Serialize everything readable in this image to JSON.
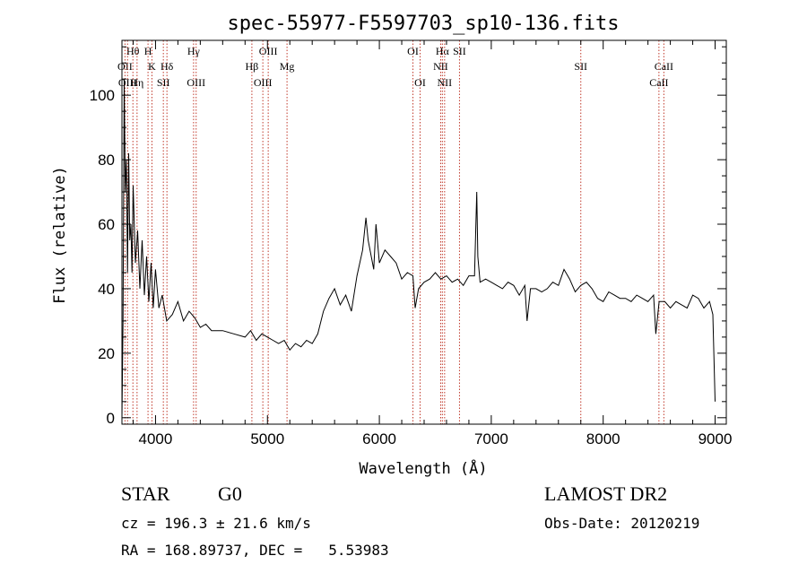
{
  "chart_data": {
    "type": "line",
    "title": "spec-55977-F5597703_sp10-136.fits",
    "xlabel": "Wavelength (Å)",
    "ylabel": "Flux (relative)",
    "xlim": [
      3700,
      9100
    ],
    "ylim": [
      -2,
      117
    ],
    "x_ticks": [
      4000,
      5000,
      6000,
      7000,
      8000,
      9000
    ],
    "y_ticks": [
      0,
      20,
      40,
      60,
      80,
      100
    ],
    "grid": false,
    "series": [
      {
        "x": [
          3700,
          3710,
          3720,
          3730,
          3740,
          3750,
          3760,
          3770,
          3780,
          3790,
          3800,
          3820,
          3840,
          3860,
          3880,
          3900,
          3920,
          3940,
          3960,
          3980,
          4000,
          4030,
          4060,
          4100,
          4150,
          4200,
          4250,
          4300,
          4350,
          4400,
          4450,
          4500,
          4600,
          4700,
          4800,
          4850,
          4900,
          4950,
          5000,
          5050,
          5100,
          5150,
          5200,
          5250,
          5300,
          5350,
          5400,
          5450,
          5500,
          5550,
          5600,
          5650,
          5700,
          5750,
          5800,
          5850,
          5880,
          5900,
          5950,
          5970,
          6000,
          6050,
          6100,
          6150,
          6200,
          6250,
          6300,
          6320,
          6350,
          6400,
          6450,
          6500,
          6550,
          6600,
          6650,
          6700,
          6750,
          6800,
          6850,
          6870,
          6880,
          6900,
          6950,
          7000,
          7050,
          7100,
          7150,
          7200,
          7250,
          7300,
          7320,
          7350,
          7400,
          7450,
          7500,
          7550,
          7600,
          7650,
          7700,
          7750,
          7800,
          7850,
          7900,
          7950,
          8000,
          8050,
          8100,
          8150,
          8200,
          8250,
          8300,
          8350,
          8400,
          8450,
          8470,
          8500,
          8550,
          8600,
          8650,
          8700,
          8750,
          8800,
          8850,
          8900,
          8950,
          8980,
          9000
        ],
        "values": [
          0,
          30,
          105,
          70,
          80,
          45,
          82,
          55,
          60,
          45,
          72,
          48,
          58,
          40,
          55,
          38,
          50,
          36,
          48,
          34,
          46,
          34,
          38,
          30,
          32,
          36,
          30,
          33,
          31,
          28,
          29,
          27,
          27,
          26,
          25,
          27,
          24,
          26,
          25,
          24,
          23,
          24,
          21,
          23,
          22,
          24,
          23,
          26,
          33,
          37,
          40,
          35,
          38,
          33,
          44,
          52,
          62,
          55,
          46,
          60,
          48,
          52,
          50,
          48,
          43,
          45,
          44,
          34,
          40,
          42,
          43,
          45,
          43,
          44,
          42,
          43,
          41,
          44,
          44,
          70,
          50,
          42,
          43,
          42,
          41,
          40,
          42,
          41,
          38,
          41,
          30,
          40,
          40,
          39,
          40,
          42,
          41,
          46,
          43,
          39,
          41,
          42,
          40,
          37,
          36,
          39,
          38,
          37,
          37,
          36,
          38,
          37,
          36,
          38,
          26,
          36,
          36,
          34,
          36,
          35,
          34,
          38,
          37,
          34,
          36,
          32,
          5
        ]
      }
    ],
    "spectral_lines": [
      {
        "name": "Hθ",
        "wl": 3798,
        "row": 1
      },
      {
        "name": "OII",
        "wl": 3727,
        "row": 2
      },
      {
        "name": "OIII",
        "wl": 3750,
        "row": 3
      },
      {
        "name": "Hη",
        "wl": 3835,
        "row": 3
      },
      {
        "name": "H",
        "wl": 3933,
        "row": 1
      },
      {
        "name": "K",
        "wl": 3968,
        "row": 2
      },
      {
        "name": "Hδ",
        "wl": 4102,
        "row": 2
      },
      {
        "name": "SII",
        "wl": 4070,
        "row": 3
      },
      {
        "name": "Hγ",
        "wl": 4340,
        "row": 1
      },
      {
        "name": "OIII",
        "wl": 4363,
        "row": 3
      },
      {
        "name": "OIII",
        "wl": 5007,
        "row": 1
      },
      {
        "name": "Hβ",
        "wl": 4861,
        "row": 2
      },
      {
        "name": "Mg",
        "wl": 5175,
        "row": 2
      },
      {
        "name": "OIII",
        "wl": 4959,
        "row": 3
      },
      {
        "name": "OI",
        "wl": 6300,
        "row": 1
      },
      {
        "name": "OI",
        "wl": 6364,
        "row": 3
      },
      {
        "name": "Hα",
        "wl": 6563,
        "row": 1
      },
      {
        "name": "SII",
        "wl": 6716,
        "row": 1
      },
      {
        "name": "NII",
        "wl": 6548,
        "row": 2
      },
      {
        "name": "NII",
        "wl": 6583,
        "row": 3
      },
      {
        "name": "SII",
        "wl": 7800,
        "row": 2
      },
      {
        "name": "CaII",
        "wl": 8542,
        "row": 2
      },
      {
        "name": "CaII",
        "wl": 8498,
        "row": 3
      }
    ]
  },
  "info": {
    "class": "STAR",
    "subclass": "G0",
    "survey": "LAMOST DR2",
    "cz": "cz = 196.3 ± 21.6 km/s",
    "obs_date": "Obs-Date: 20120219",
    "coords": "RA = 168.89737, DEC =   5.53983"
  },
  "colors": {
    "line_marker": "#c0392b",
    "spectrum": "#000000"
  }
}
